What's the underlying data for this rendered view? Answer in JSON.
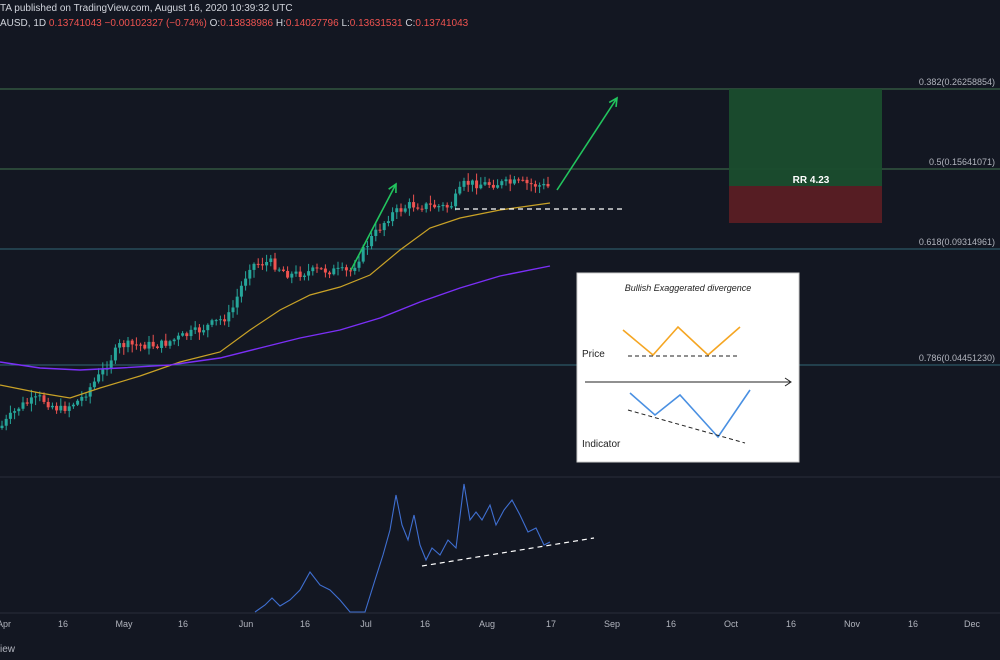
{
  "header": {
    "published": "TA published on TradingView.com, August 16, 2020 10:39:32 UTC",
    "symbol": "AUSD, 1D",
    "last": "0.13741043",
    "change": "−0.00102327 (−0.74%)",
    "open_label": "O:",
    "open": "0.13838986",
    "high_label": "H:",
    "high": "0.14027796",
    "low_label": "L:",
    "low": "0.13631531",
    "close_label": "C:",
    "close": "0.13741043"
  },
  "footer": {
    "text": "iew"
  },
  "colors": {
    "background": "#131722",
    "up": "#26a69a",
    "down": "#ef5350",
    "ma_short": "#c9a227",
    "ma_long": "#7b2ff7",
    "arrow": "#22c55e",
    "indicator": "#3f6fd1",
    "fib": "#3a7c8c",
    "rr_profit": "#1a4d2e",
    "rr_loss": "#5a1e24"
  },
  "chart_data": {
    "type": "candlestick",
    "x_ticks": [
      "Apr",
      "16",
      "May",
      "16",
      "Jun",
      "16",
      "Jul",
      "16",
      "Aug",
      "17",
      "Sep",
      "16",
      "Oct",
      "16",
      "Nov",
      "16",
      "Dec"
    ],
    "fib_levels": [
      {
        "label": "0.382(0.26258854)",
        "value": 0.26258854
      },
      {
        "label": "0.5(0.15641071)",
        "value": 0.15641071
      },
      {
        "label": "0.618(0.09314961)",
        "value": 0.09314961
      },
      {
        "label": "0.786(0.04451230)",
        "value": 0.0445123
      }
    ],
    "risk_reward": {
      "label": "RR 4.23",
      "entry": 0.142,
      "target": 0.26258854,
      "stop": 0.114
    },
    "series": [
      {
        "name": "",
        "kind": "ma_short"
      },
      {
        "name": "",
        "kind": "ma_long"
      },
      {
        "name": "",
        "kind": "indicator"
      }
    ],
    "inset": {
      "title": "Bullish Exaggerated divergence",
      "price_label": "Price",
      "indicator_label": "Indicator"
    },
    "grid": false
  }
}
